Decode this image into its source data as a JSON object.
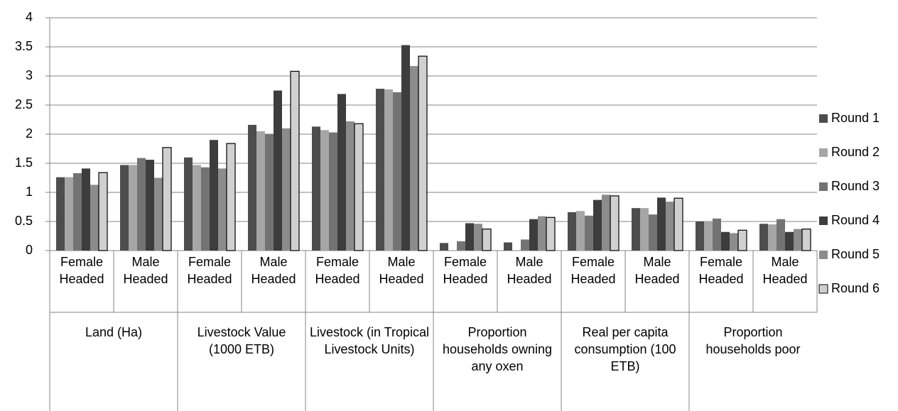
{
  "chart_data": {
    "type": "bar",
    "categories": [
      "Female Headed",
      "Male Headed",
      "Female Headed",
      "Male Headed",
      "Female Headed",
      "Male Headed",
      "Female Headed",
      "Male Headed",
      "Female Headed",
      "Male Headed",
      "Female Headed",
      "Male Headed"
    ],
    "groups": [
      "Land  (Ha)",
      "Livestock Value (1000 ETB)",
      "Livestock  (in Tropical Livestock Units)",
      "Proportion households owning any oxen",
      "Real per capita consumption (100 ETB)",
      "Proportion households poor"
    ],
    "series": [
      {
        "name": "Round 1",
        "color": "#4d4d4d",
        "values": [
          1.26,
          1.47,
          1.6,
          2.16,
          2.13,
          2.78,
          0.13,
          0.14,
          0.66,
          0.73,
          0.5,
          0.46
        ]
      },
      {
        "name": "Round 2",
        "color": "#a6a6a6",
        "values": [
          1.26,
          1.47,
          1.47,
          2.05,
          2.07,
          2.77,
          0,
          0,
          0.68,
          0.73,
          0.5,
          0.45
        ]
      },
      {
        "name": "Round 3",
        "color": "#737373",
        "values": [
          1.33,
          1.59,
          1.43,
          2.0,
          2.03,
          2.72,
          0.16,
          0.19,
          0.6,
          0.62,
          0.55,
          0.54
        ]
      },
      {
        "name": "Round 4",
        "color": "#3d3d3d",
        "values": [
          1.41,
          1.56,
          1.9,
          2.75,
          2.69,
          3.53,
          0.47,
          0.54,
          0.87,
          0.91,
          0.32,
          0.32
        ]
      },
      {
        "name": "Round 5",
        "color": "#8c8c8c",
        "values": [
          1.13,
          1.25,
          1.41,
          2.1,
          2.22,
          3.17,
          0.46,
          0.59,
          0.96,
          0.84,
          0.3,
          0.37
        ]
      },
      {
        "name": "Round 6",
        "color": "#d0d0d0",
        "edgecolor": "#000000",
        "values": [
          1.34,
          1.77,
          1.84,
          3.08,
          2.18,
          3.34,
          0.37,
          0.57,
          0.94,
          0.9,
          0.35,
          0.37
        ]
      }
    ],
    "ylim": [
      0,
      4
    ],
    "yticks": [
      0,
      0.5,
      1,
      1.5,
      2,
      2.5,
      3,
      3.5,
      4
    ],
    "grid": true,
    "legend": "right"
  }
}
